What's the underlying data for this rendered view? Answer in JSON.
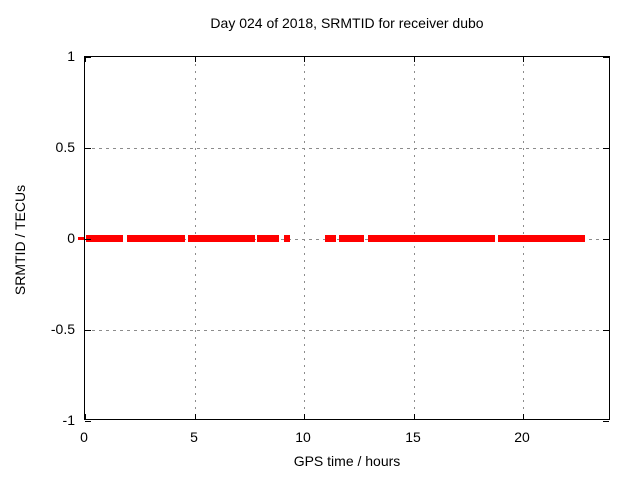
{
  "window": {
    "kind": "gnuplot-figure",
    "background": "#ffffff"
  },
  "chart_data": {
    "type": "line",
    "title": "Day 024 of 2018, SRMTID for receiver dubo",
    "xlabel": "GPS time / hours",
    "ylabel": "SRMTID / TECUs",
    "xlim": [
      0,
      24
    ],
    "ylim": [
      -1,
      1
    ],
    "grid": true,
    "legend": "none",
    "xticks": [
      {
        "v": 0,
        "label": "0"
      },
      {
        "v": 5,
        "label": "5"
      },
      {
        "v": 10,
        "label": "10"
      },
      {
        "v": 15,
        "label": "15"
      },
      {
        "v": 20,
        "label": "20"
      }
    ],
    "yticks": [
      {
        "v": 1,
        "label": "1"
      },
      {
        "v": 0.5,
        "label": "0.5"
      },
      {
        "v": 0,
        "label": "0"
      },
      {
        "v": -0.5,
        "label": "-0.5"
      },
      {
        "v": -1,
        "label": "-1"
      }
    ],
    "series": [
      {
        "name": "SRMTID",
        "color": "#ff0000",
        "y_value": 0,
        "style": "thick horizontal band at y=0 with data gaps",
        "segments_hours": [
          [
            0.05,
            1.75
          ],
          [
            1.9,
            4.55
          ],
          [
            4.7,
            7.75
          ],
          [
            7.85,
            8.85
          ],
          [
            9.1,
            9.35
          ],
          [
            10.95,
            11.45
          ],
          [
            11.6,
            12.75
          ],
          [
            12.9,
            18.7
          ],
          [
            18.85,
            22.8
          ]
        ]
      }
    ]
  },
  "colors": {
    "series_red": "#ff0000",
    "grid": "#8c8c8c",
    "axis": "#000000",
    "background": "#ffffff"
  }
}
